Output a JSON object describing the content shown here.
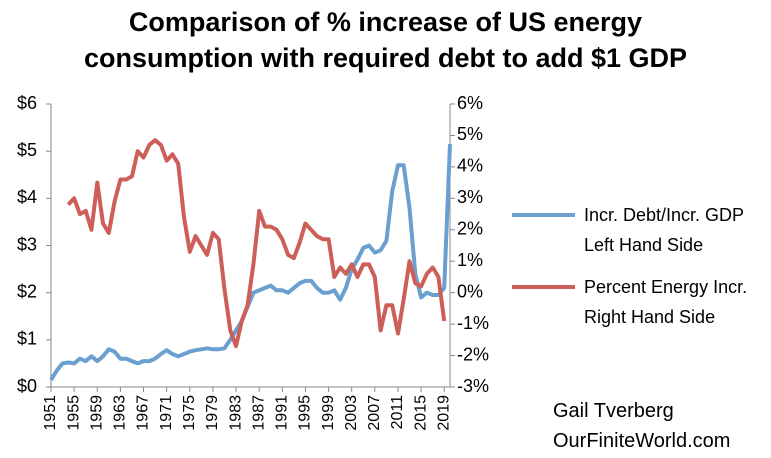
{
  "chart_data": {
    "type": "line",
    "title": "Comparison of % increase of US energy\nconsumption with required debt to add $1 GDP",
    "annotation": "Gail Tverberg\nOurFiniteWorld.com",
    "x": [
      1951,
      1952,
      1953,
      1954,
      1955,
      1956,
      1957,
      1958,
      1959,
      1960,
      1961,
      1962,
      1963,
      1964,
      1965,
      1966,
      1967,
      1968,
      1969,
      1970,
      1971,
      1972,
      1973,
      1974,
      1975,
      1976,
      1977,
      1978,
      1979,
      1980,
      1981,
      1982,
      1983,
      1984,
      1985,
      1986,
      1987,
      1988,
      1989,
      1990,
      1991,
      1992,
      1993,
      1994,
      1995,
      1996,
      1997,
      1998,
      1999,
      2000,
      2001,
      2002,
      2003,
      2004,
      2005,
      2006,
      2007,
      2008,
      2009,
      2010,
      2011,
      2012,
      2013,
      2014,
      2015,
      2016,
      2017,
      2018,
      2019,
      2020
    ],
    "xlim": [
      1951,
      2020
    ],
    "xticks": [
      1951,
      1955,
      1959,
      1963,
      1967,
      1971,
      1975,
      1979,
      1983,
      1987,
      1991,
      1995,
      1999,
      2003,
      2007,
      2011,
      2015,
      2019
    ],
    "ylim": [
      0,
      6
    ],
    "yticks": [
      {
        "value": 0,
        "label": "$0"
      },
      {
        "value": 1,
        "label": "$1"
      },
      {
        "value": 2,
        "label": "$2"
      },
      {
        "value": 3,
        "label": "$3"
      },
      {
        "value": 4,
        "label": "$4"
      },
      {
        "value": 5,
        "label": "$5"
      },
      {
        "value": 6,
        "label": "$6"
      }
    ],
    "y2lim": [
      -3,
      6
    ],
    "y2ticks": [
      {
        "value": -3,
        "label": "-3%"
      },
      {
        "value": -2,
        "label": "-2%"
      },
      {
        "value": -1,
        "label": "-1%"
      },
      {
        "value": 0,
        "label": "0%"
      },
      {
        "value": 1,
        "label": "1%"
      },
      {
        "value": 2,
        "label": "2%"
      },
      {
        "value": 3,
        "label": "3%"
      },
      {
        "value": 4,
        "label": "4%"
      },
      {
        "value": 5,
        "label": "5%"
      },
      {
        "value": 6,
        "label": "6%"
      }
    ],
    "grid": false,
    "legend": "right",
    "series": [
      {
        "name": "Incr. Debt/Incr. GDP Left Hand Side",
        "color": "#6a9fd0",
        "axis": "y",
        "values": [
          0.15,
          0.35,
          0.5,
          0.52,
          0.5,
          0.6,
          0.55,
          0.65,
          0.55,
          0.65,
          0.8,
          0.75,
          0.6,
          0.6,
          0.55,
          0.5,
          0.55,
          0.55,
          0.6,
          0.7,
          0.78,
          0.7,
          0.65,
          0.7,
          0.75,
          0.78,
          0.8,
          0.82,
          0.8,
          0.8,
          0.82,
          1.0,
          1.2,
          1.4,
          1.7,
          2.0,
          2.05,
          2.1,
          2.15,
          2.05,
          2.05,
          2.0,
          2.1,
          2.2,
          2.25,
          2.25,
          2.1,
          2.0,
          2.0,
          2.05,
          1.85,
          2.1,
          2.5,
          2.7,
          2.95,
          3.0,
          2.85,
          2.9,
          3.1,
          4.15,
          4.7,
          4.7,
          3.8,
          2.4,
          1.9,
          2.0,
          1.95,
          1.95,
          2.1,
          5.15
        ]
      },
      {
        "name": "Percent Energy Incr. Right Hand Side",
        "color": "#cc5f57",
        "axis": "y2",
        "values": [
          null,
          null,
          null,
          2.8,
          3.0,
          2.5,
          2.6,
          2.0,
          3.5,
          2.2,
          1.9,
          2.9,
          3.6,
          3.6,
          3.7,
          4.5,
          4.3,
          4.7,
          4.85,
          4.7,
          4.2,
          4.4,
          4.1,
          2.4,
          1.3,
          1.8,
          1.5,
          1.2,
          1.9,
          1.7,
          0.1,
          -1.2,
          -1.7,
          -0.9,
          -0.4,
          0.9,
          2.6,
          2.1,
          2.1,
          2.0,
          1.7,
          1.2,
          1.1,
          1.6,
          2.2,
          2.0,
          1.8,
          1.7,
          1.7,
          0.5,
          0.8,
          0.6,
          0.9,
          0.5,
          0.9,
          0.9,
          0.5,
          -1.2,
          -0.4,
          -0.4,
          -1.3,
          -0.2,
          1.0,
          0.3,
          0.2,
          0.6,
          0.8,
          0.5,
          -0.9,
          null
        ]
      }
    ]
  }
}
